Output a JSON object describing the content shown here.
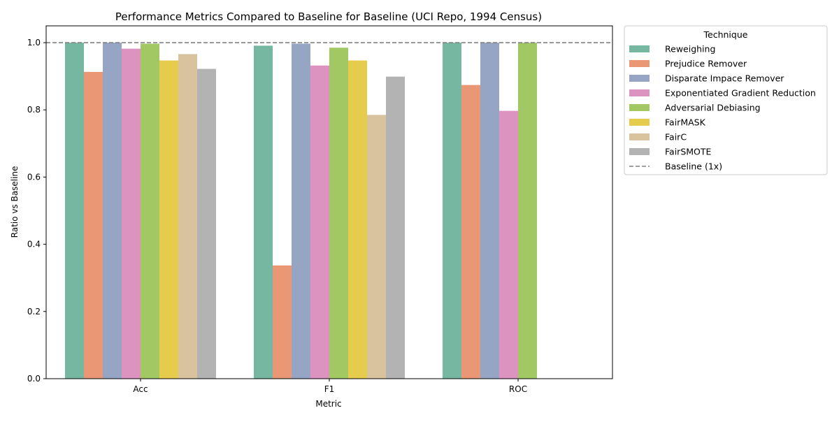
{
  "chart_data": {
    "type": "bar",
    "title": "Performance Metrics Compared to Baseline for Baseline (UCI Repo, 1994 Census)",
    "xlabel": "Metric",
    "ylabel": "Ratio vs Baseline",
    "ylim": [
      0,
      1.05
    ],
    "yticks": [
      "0.0",
      "0.2",
      "0.4",
      "0.6",
      "0.8",
      "1.0"
    ],
    "categories": [
      "Acc",
      "F1",
      "ROC"
    ],
    "baseline": {
      "value": 1.0,
      "name": "Baseline (1x)",
      "color": "#808080"
    },
    "legend": {
      "title": "Technique",
      "placement": "outside-right"
    },
    "grid": false,
    "series": [
      {
        "name": "Reweighing",
        "color": "#76b7a1",
        "values": [
          1.0,
          0.991,
          1.0
        ]
      },
      {
        "name": "Prejudice Remover",
        "color": "#e99775",
        "values": [
          0.913,
          0.337,
          0.874
        ]
      },
      {
        "name": "Disparate Impace Remover",
        "color": "#96a5c4",
        "values": [
          1.0,
          0.997,
          1.0
        ]
      },
      {
        "name": "Exponentiated Gradient Reduction",
        "color": "#dc93bf",
        "values": [
          0.982,
          0.932,
          0.797
        ]
      },
      {
        "name": "Adversarial Debiasing",
        "color": "#a2c864",
        "values": [
          0.997,
          0.985,
          1.0
        ]
      },
      {
        "name": "FairMASK",
        "color": "#e5cc4c",
        "values": [
          0.947,
          0.947,
          null
        ]
      },
      {
        "name": "FairC",
        "color": "#d9c39f",
        "values": [
          0.966,
          0.785,
          null
        ]
      },
      {
        "name": "FairSMOTE",
        "color": "#b3b3b3",
        "values": [
          0.922,
          0.899,
          null
        ]
      }
    ]
  }
}
